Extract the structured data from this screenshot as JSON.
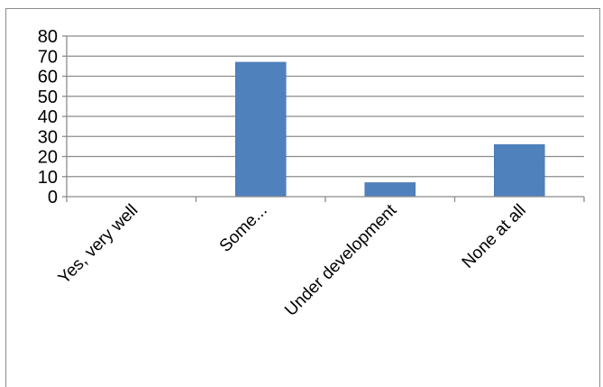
{
  "chart_data": {
    "type": "bar",
    "categories": [
      "Yes, very well",
      "Some...",
      "Under development",
      "None at all"
    ],
    "values": [
      0,
      67,
      7,
      26
    ],
    "ylim": [
      0,
      80
    ],
    "yticks": [
      0,
      10,
      20,
      30,
      40,
      50,
      60,
      70,
      80
    ],
    "grid": true,
    "title": "",
    "xlabel": "",
    "ylabel": "",
    "colors": {
      "bar": "#4f81bd",
      "bar_edge": "#3f6fa8",
      "grid": "#8c8c8c",
      "axis": "#8c8c8c"
    }
  }
}
